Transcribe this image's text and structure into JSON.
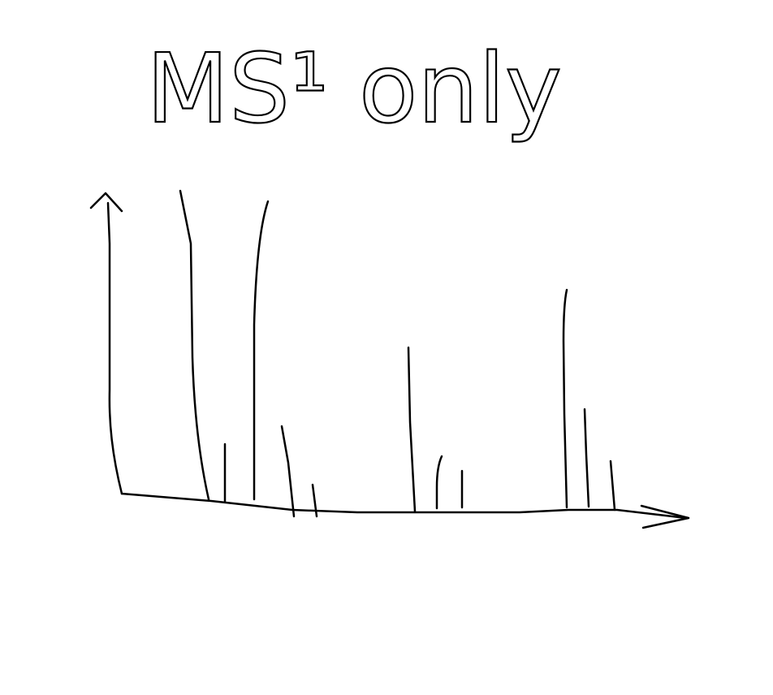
{
  "title": "MS¹ only"
}
